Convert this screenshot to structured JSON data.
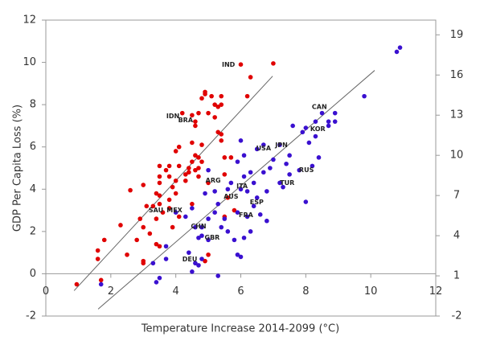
{
  "chart_data": {
    "type": "scatter",
    "xlabel": "Temperature Increase 2014-2099 (°C)",
    "ylabel": "GDP Per Capita Loss (%)",
    "xlim": [
      0,
      12
    ],
    "xticks": [
      0,
      2,
      4,
      6,
      8,
      10,
      12
    ],
    "ylim": [
      -2,
      12
    ],
    "yticks": [
      -2,
      0,
      2,
      4,
      6,
      8,
      10,
      12
    ],
    "y2lim": [
      -2,
      20.1
    ],
    "y2ticks": [
      -2,
      1,
      4,
      7,
      10,
      13,
      16,
      19
    ],
    "series": [
      {
        "color": "#e00000",
        "x": [
          0.95,
          1.6,
          1.6,
          1.7,
          1.8,
          2.3,
          2.5,
          2.6,
          2.8,
          2.9,
          3.0,
          3.0,
          3.0,
          3.1,
          3.2,
          3.3,
          3.4,
          3.4,
          3.4,
          3.5,
          3.5,
          3.5,
          3.5,
          3.5,
          3.5,
          3.6,
          3.7,
          3.8,
          3.8,
          3.8,
          3.8,
          3.9,
          3.9,
          4.0,
          4.0,
          4.0,
          4.1,
          4.1,
          4.1,
          4.2,
          4.3,
          4.3,
          4.4,
          4.4,
          4.5,
          4.5,
          4.5,
          4.5,
          4.6,
          4.6,
          4.6,
          4.6,
          4.7,
          4.7,
          4.7,
          4.7,
          4.8,
          4.8,
          4.8,
          4.9,
          4.9,
          5.0,
          5.0,
          5.1,
          5.2,
          5.2,
          5.3,
          5.3,
          5.4,
          5.4,
          5.4,
          5.4,
          5.5,
          5.5,
          5.5,
          5.6,
          5.7,
          5.8,
          6.0,
          6.3,
          6.2,
          7.0,
          3.0,
          5.0,
          4.9
        ],
        "y": [
          -0.5,
          1.1,
          0.7,
          -0.3,
          1.6,
          2.3,
          0.9,
          3.95,
          1.6,
          2.6,
          4.2,
          0.5,
          2.2,
          3.2,
          1.9,
          3.2,
          2.6,
          3.8,
          1.4,
          5.1,
          4.6,
          4.3,
          3.7,
          3.3,
          1.3,
          2.9,
          4.9,
          4.6,
          5.1,
          3.5,
          3.1,
          4.1,
          2.2,
          5.8,
          4.4,
          3.8,
          6.0,
          5.1,
          2.7,
          7.6,
          4.7,
          4.4,
          5.0,
          4.8,
          5.3,
          3.3,
          6.2,
          7.5,
          7.2,
          7.0,
          5.6,
          4.9,
          5.0,
          4.6,
          7.6,
          5.5,
          6.1,
          8.3,
          5.3,
          8.6,
          8.5,
          7.6,
          4.3,
          8.4,
          8.0,
          7.4,
          7.9,
          6.7,
          8.0,
          6.6,
          6.3,
          8.4,
          5.5,
          4.7,
          2.7,
          3.6,
          5.5,
          3.0,
          9.9,
          9.3,
          8.4,
          9.95,
          0.6,
          0.9,
          0.6
        ]
      },
      {
        "color": "#3a10d0",
        "x": [
          1.7,
          3.4,
          3.5,
          3.3,
          3.7,
          3.7,
          4.4,
          4.5,
          4.6,
          4.7,
          4.8,
          5.3,
          4.0,
          4.3,
          4.5,
          4.6,
          4.7,
          4.8,
          4.8,
          5.0,
          5.0,
          5.2,
          5.2,
          5.3,
          5.4,
          5.5,
          5.6,
          5.8,
          5.9,
          6.0,
          5.9,
          6.1,
          6.2,
          6.3,
          6.4,
          6.5,
          6.6,
          6.2,
          6.0,
          5.7,
          5.9,
          6.0,
          6.1,
          6.3,
          6.4,
          6.5,
          6.7,
          6.7,
          6.8,
          6.8,
          6.9,
          7.0,
          7.2,
          7.2,
          7.3,
          7.4,
          7.5,
          7.5,
          7.6,
          7.8,
          7.9,
          8.0,
          8.0,
          8.1,
          8.2,
          8.3,
          8.3,
          8.4,
          8.5,
          8.7,
          8.7,
          8.9,
          8.9,
          9.8,
          10.8,
          10.9,
          5.0,
          4.9,
          5.6,
          6.1
        ],
        "y": [
          -0.5,
          -0.4,
          -0.2,
          0.5,
          1.3,
          0.7,
          1.0,
          0.1,
          0.5,
          0.4,
          0.7,
          -0.1,
          2.9,
          2.7,
          3.1,
          2.2,
          1.7,
          2.2,
          1.8,
          1.6,
          2.6,
          2.9,
          3.9,
          3.3,
          2.2,
          2.6,
          2.0,
          1.6,
          0.9,
          0.8,
          2.9,
          1.7,
          2.7,
          2.0,
          3.2,
          3.6,
          2.8,
          3.9,
          4.0,
          4.3,
          5.3,
          6.3,
          5.6,
          4.8,
          4.3,
          5.9,
          6.1,
          4.8,
          3.9,
          2.5,
          5.0,
          5.4,
          6.1,
          4.3,
          4.1,
          5.2,
          5.6,
          4.7,
          7.0,
          4.9,
          6.7,
          6.9,
          3.4,
          6.2,
          5.1,
          6.5,
          7.2,
          5.5,
          7.6,
          7.2,
          7.0,
          7.2,
          7.6,
          8.4,
          10.5,
          10.7,
          4.9,
          3.8,
          4.0,
          4.6
        ]
      }
    ],
    "trendlines": [
      {
        "color": "#666666",
        "x": [
          0.87,
          6.98
        ],
        "y": [
          -0.8,
          9.35
        ]
      },
      {
        "color": "#666666",
        "x": [
          1.61,
          10.12
        ],
        "y": [
          -1.67,
          9.62
        ]
      }
    ],
    "annotations": [
      {
        "text": "IND",
        "x": 5.62,
        "y": 9.88
      },
      {
        "text": "IDN",
        "x": 3.91,
        "y": 7.45
      },
      {
        "text": "BRA",
        "x": 4.3,
        "y": 7.26
      },
      {
        "text": "CAN",
        "x": 8.42,
        "y": 7.9
      },
      {
        "text": "KOR",
        "x": 8.37,
        "y": 6.84
      },
      {
        "text": "JPN",
        "x": 7.25,
        "y": 6.08
      },
      {
        "text": "USA",
        "x": 6.7,
        "y": 5.93
      },
      {
        "text": "RUS",
        "x": 8.02,
        "y": 4.9
      },
      {
        "text": "TUR",
        "x": 7.43,
        "y": 4.3
      },
      {
        "text": "ARG",
        "x": 5.15,
        "y": 4.41
      },
      {
        "text": "ITA",
        "x": 6.04,
        "y": 4.14
      },
      {
        "text": "AUS",
        "x": 5.7,
        "y": 3.65
      },
      {
        "text": "ESP",
        "x": 6.49,
        "y": 3.38
      },
      {
        "text": "FRA",
        "x": 6.16,
        "y": 2.78
      },
      {
        "text": "SAU",
        "x": 3.39,
        "y": 3.0
      },
      {
        "text": "MEX",
        "x": 3.96,
        "y": 3.0
      },
      {
        "text": "CHN",
        "x": 4.7,
        "y": 2.24
      },
      {
        "text": "GBR",
        "x": 5.12,
        "y": 1.71
      },
      {
        "text": "DEU",
        "x": 4.43,
        "y": 0.68
      }
    ]
  }
}
